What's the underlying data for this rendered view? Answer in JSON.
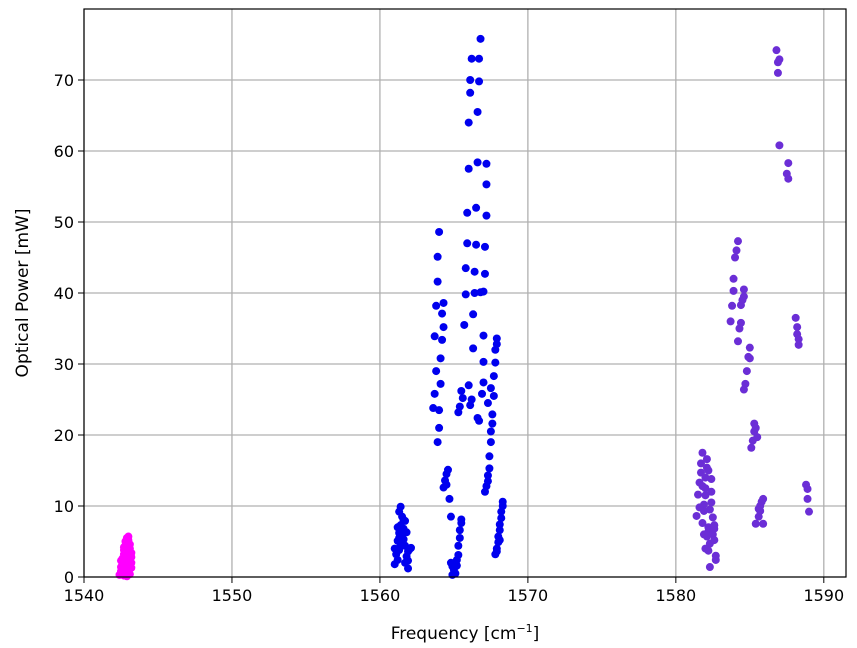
{
  "chart_data": {
    "type": "scatter",
    "xlabel": "Frequency [cm",
    "xlabel_sup": "−1",
    "xlabel_end": "]",
    "ylabel": "Optical Power [mW]",
    "xlim": [
      1540,
      1591.5
    ],
    "ylim": [
      0,
      80
    ],
    "xticks": [
      1540,
      1550,
      1560,
      1570,
      1580,
      1590
    ],
    "yticks": [
      0,
      10,
      20,
      30,
      40,
      50,
      60,
      70
    ],
    "grid": true,
    "series": [
      {
        "color": "#ff00ff",
        "points": [
          [
            1542.4,
            0.3
          ],
          [
            1542.5,
            0.8
          ],
          [
            1542.5,
            1.4
          ],
          [
            1542.6,
            2.0
          ],
          [
            1542.6,
            2.6
          ],
          [
            1542.7,
            3.2
          ],
          [
            1542.7,
            3.8
          ],
          [
            1542.8,
            4.4
          ],
          [
            1542.8,
            5.0
          ],
          [
            1542.9,
            5.5
          ],
          [
            1543.0,
            5.7
          ],
          [
            1543.0,
            5.2
          ],
          [
            1543.1,
            4.6
          ],
          [
            1543.1,
            4.0
          ],
          [
            1543.2,
            3.4
          ],
          [
            1543.2,
            2.8
          ],
          [
            1543.1,
            2.2
          ],
          [
            1543.0,
            1.6
          ],
          [
            1542.9,
            1.0
          ],
          [
            1542.8,
            0.5
          ],
          [
            1542.7,
            0.2
          ],
          [
            1542.9,
            0.1
          ],
          [
            1543.1,
            0.4
          ],
          [
            1543.0,
            0.9
          ],
          [
            1543.2,
            1.3
          ],
          [
            1542.6,
            1.7
          ],
          [
            1542.8,
            2.4
          ],
          [
            1543.1,
            3.0
          ],
          [
            1542.9,
            3.6
          ],
          [
            1542.7,
            4.2
          ],
          [
            1543.0,
            4.8
          ],
          [
            1542.9,
            5.3
          ],
          [
            1543.2,
            2.0
          ],
          [
            1542.5,
            2.3
          ],
          [
            1543.0,
            3.3
          ]
        ]
      },
      {
        "color": "#0000ee",
        "points": [
          [
            1561.0,
            1.8
          ],
          [
            1561.2,
            2.4
          ],
          [
            1561.1,
            3.2
          ],
          [
            1561.3,
            3.8
          ],
          [
            1561.4,
            4.5
          ],
          [
            1561.2,
            5.1
          ],
          [
            1561.5,
            5.6
          ],
          [
            1561.3,
            6.2
          ],
          [
            1561.6,
            6.8
          ],
          [
            1561.4,
            7.3
          ],
          [
            1561.7,
            7.9
          ],
          [
            1561.5,
            8.5
          ],
          [
            1561.3,
            9.2
          ],
          [
            1561.4,
            9.9
          ],
          [
            1561.7,
            2.0
          ],
          [
            1561.8,
            2.9
          ],
          [
            1561.9,
            3.6
          ],
          [
            1561.7,
            4.4
          ],
          [
            1561.9,
            1.2
          ],
          [
            1562.0,
            3.9
          ],
          [
            1562.1,
            4.1
          ],
          [
            1561.6,
            5.3
          ],
          [
            1561.8,
            6.3
          ],
          [
            1561.2,
            7.0
          ],
          [
            1561.6,
            8.0
          ],
          [
            1561.0,
            4.0
          ],
          [
            1561.3,
            5.5
          ],
          [
            1561.9,
            2.3
          ],
          [
            1563.6,
            23.8
          ],
          [
            1563.7,
            25.8
          ],
          [
            1563.8,
            29.0
          ],
          [
            1563.9,
            19.0
          ],
          [
            1564.0,
            21.0
          ],
          [
            1564.0,
            23.5
          ],
          [
            1564.1,
            27.2
          ],
          [
            1564.1,
            30.8
          ],
          [
            1564.2,
            33.4
          ],
          [
            1563.7,
            33.9
          ],
          [
            1563.8,
            38.2
          ],
          [
            1563.9,
            41.6
          ],
          [
            1563.9,
            45.1
          ],
          [
            1564.0,
            48.6
          ],
          [
            1564.3,
            35.2
          ],
          [
            1564.2,
            37.1
          ],
          [
            1564.3,
            38.6
          ],
          [
            1564.3,
            12.6
          ],
          [
            1564.4,
            13.6
          ],
          [
            1564.5,
            14.5
          ],
          [
            1564.6,
            15.1
          ],
          [
            1564.5,
            13.0
          ],
          [
            1564.7,
            11.0
          ],
          [
            1564.8,
            8.5
          ],
          [
            1564.8,
            2.0
          ],
          [
            1564.9,
            0.3
          ],
          [
            1565.0,
            1.0
          ],
          [
            1565.1,
            0.5
          ],
          [
            1565.2,
            1.6
          ],
          [
            1565.2,
            2.4
          ],
          [
            1565.3,
            3.1
          ],
          [
            1565.3,
            4.4
          ],
          [
            1565.4,
            5.5
          ],
          [
            1565.4,
            6.6
          ],
          [
            1565.5,
            7.6
          ],
          [
            1565.5,
            8.1
          ],
          [
            1565.1,
            2.0
          ],
          [
            1564.9,
            1.5
          ],
          [
            1565.3,
            23.2
          ],
          [
            1565.4,
            24.0
          ],
          [
            1565.5,
            26.2
          ],
          [
            1565.6,
            25.2
          ],
          [
            1565.7,
            35.5
          ],
          [
            1565.8,
            39.8
          ],
          [
            1565.8,
            43.5
          ],
          [
            1565.9,
            47.0
          ],
          [
            1565.9,
            51.3
          ],
          [
            1566.0,
            57.5
          ],
          [
            1566.0,
            64.0
          ],
          [
            1566.1,
            68.2
          ],
          [
            1566.1,
            70.0
          ],
          [
            1566.2,
            73.0
          ],
          [
            1566.0,
            27.0
          ],
          [
            1566.1,
            24.2
          ],
          [
            1566.2,
            25.0
          ],
          [
            1566.3,
            32.2
          ],
          [
            1566.3,
            37.0
          ],
          [
            1566.4,
            40.0
          ],
          [
            1566.4,
            43.0
          ],
          [
            1566.5,
            46.8
          ],
          [
            1566.5,
            52.0
          ],
          [
            1566.6,
            58.4
          ],
          [
            1566.6,
            65.5
          ],
          [
            1566.7,
            69.8
          ],
          [
            1566.7,
            73.0
          ],
          [
            1566.8,
            75.8
          ],
          [
            1566.6,
            22.4
          ],
          [
            1566.7,
            22.0
          ],
          [
            1566.8,
            40.1
          ],
          [
            1567.0,
            34.0
          ],
          [
            1567.0,
            40.2
          ],
          [
            1567.1,
            42.7
          ],
          [
            1567.1,
            46.5
          ],
          [
            1567.2,
            50.9
          ],
          [
            1567.2,
            55.3
          ],
          [
            1567.2,
            58.2
          ],
          [
            1567.0,
            27.4
          ],
          [
            1566.9,
            25.8
          ],
          [
            1567.0,
            30.3
          ],
          [
            1567.1,
            12.0
          ],
          [
            1567.2,
            12.8
          ],
          [
            1567.3,
            13.5
          ],
          [
            1567.3,
            14.3
          ],
          [
            1567.4,
            15.3
          ],
          [
            1567.4,
            17.0
          ],
          [
            1567.5,
            19.0
          ],
          [
            1567.5,
            20.5
          ],
          [
            1567.6,
            21.6
          ],
          [
            1567.6,
            22.9
          ],
          [
            1567.7,
            25.5
          ],
          [
            1567.7,
            28.3
          ],
          [
            1567.8,
            30.2
          ],
          [
            1567.8,
            32.0
          ],
          [
            1567.9,
            33.6
          ],
          [
            1567.9,
            32.8
          ],
          [
            1567.5,
            26.6
          ],
          [
            1567.3,
            24.5
          ],
          [
            1567.8,
            3.2
          ],
          [
            1567.9,
            4.0
          ],
          [
            1568.0,
            4.9
          ],
          [
            1568.0,
            5.7
          ],
          [
            1568.1,
            6.6
          ],
          [
            1568.1,
            7.4
          ],
          [
            1568.2,
            8.3
          ],
          [
            1568.2,
            9.2
          ],
          [
            1568.3,
            10.0
          ],
          [
            1568.3,
            10.6
          ],
          [
            1567.9,
            3.6
          ],
          [
            1568.1,
            5.2
          ]
        ]
      },
      {
        "color": "#6b2ed6",
        "points": [
          [
            1581.4,
            8.6
          ],
          [
            1581.5,
            11.6
          ],
          [
            1581.6,
            13.3
          ],
          [
            1581.7,
            14.7
          ],
          [
            1581.7,
            16.0
          ],
          [
            1581.8,
            17.5
          ],
          [
            1581.8,
            7.6
          ],
          [
            1581.9,
            9.3
          ],
          [
            1581.9,
            10.2
          ],
          [
            1582.0,
            11.5
          ],
          [
            1582.0,
            12.5
          ],
          [
            1582.0,
            14.0
          ],
          [
            1582.1,
            15.4
          ],
          [
            1582.1,
            16.6
          ],
          [
            1582.1,
            5.7
          ],
          [
            1582.2,
            6.4
          ],
          [
            1582.2,
            7.0
          ],
          [
            1582.2,
            3.7
          ],
          [
            1582.3,
            4.7
          ],
          [
            1582.3,
            9.5
          ],
          [
            1582.4,
            12.0
          ],
          [
            1582.4,
            13.8
          ],
          [
            1582.5,
            8.4
          ],
          [
            1582.5,
            6.0
          ],
          [
            1582.6,
            7.3
          ],
          [
            1582.6,
            5.2
          ],
          [
            1582.7,
            3.0
          ],
          [
            1582.7,
            2.4
          ],
          [
            1582.3,
            1.4
          ],
          [
            1582.0,
            4.0
          ],
          [
            1581.9,
            6.0
          ],
          [
            1581.6,
            9.8
          ],
          [
            1582.4,
            10.5
          ],
          [
            1582.6,
            6.8
          ],
          [
            1582.2,
            15.0
          ],
          [
            1581.8,
            12.8
          ],
          [
            1583.7,
            36.0
          ],
          [
            1583.8,
            38.2
          ],
          [
            1583.9,
            40.3
          ],
          [
            1583.9,
            42.0
          ],
          [
            1584.0,
            45.0
          ],
          [
            1584.1,
            46.0
          ],
          [
            1584.2,
            47.3
          ],
          [
            1584.2,
            33.2
          ],
          [
            1584.3,
            35.0
          ],
          [
            1584.4,
            35.8
          ],
          [
            1584.4,
            38.3
          ],
          [
            1584.5,
            39.0
          ],
          [
            1584.6,
            39.5
          ],
          [
            1584.6,
            40.5
          ],
          [
            1584.6,
            26.4
          ],
          [
            1584.7,
            27.2
          ],
          [
            1584.8,
            29.0
          ],
          [
            1584.9,
            31.0
          ],
          [
            1585.0,
            30.8
          ],
          [
            1585.0,
            32.3
          ],
          [
            1585.1,
            18.2
          ],
          [
            1585.2,
            19.2
          ],
          [
            1585.3,
            20.5
          ],
          [
            1585.3,
            21.6
          ],
          [
            1585.4,
            21.0
          ],
          [
            1585.5,
            19.7
          ],
          [
            1585.4,
            7.5
          ],
          [
            1585.6,
            8.5
          ],
          [
            1585.7,
            9.3
          ],
          [
            1585.7,
            10.0
          ],
          [
            1585.8,
            10.6
          ],
          [
            1585.9,
            11.0
          ],
          [
            1585.9,
            7.5
          ],
          [
            1585.6,
            9.6
          ],
          [
            1586.8,
            74.2
          ],
          [
            1586.9,
            72.5
          ],
          [
            1586.9,
            71.0
          ],
          [
            1587.0,
            72.9
          ],
          [
            1587.0,
            60.8
          ],
          [
            1587.6,
            58.3
          ],
          [
            1587.5,
            56.8
          ],
          [
            1587.6,
            56.1
          ],
          [
            1588.1,
            36.5
          ],
          [
            1588.2,
            35.2
          ],
          [
            1588.2,
            34.2
          ],
          [
            1588.3,
            33.5
          ],
          [
            1588.3,
            32.7
          ],
          [
            1588.8,
            13.0
          ],
          [
            1588.9,
            12.4
          ],
          [
            1588.9,
            11.0
          ],
          [
            1589.0,
            9.2
          ]
        ]
      }
    ]
  }
}
